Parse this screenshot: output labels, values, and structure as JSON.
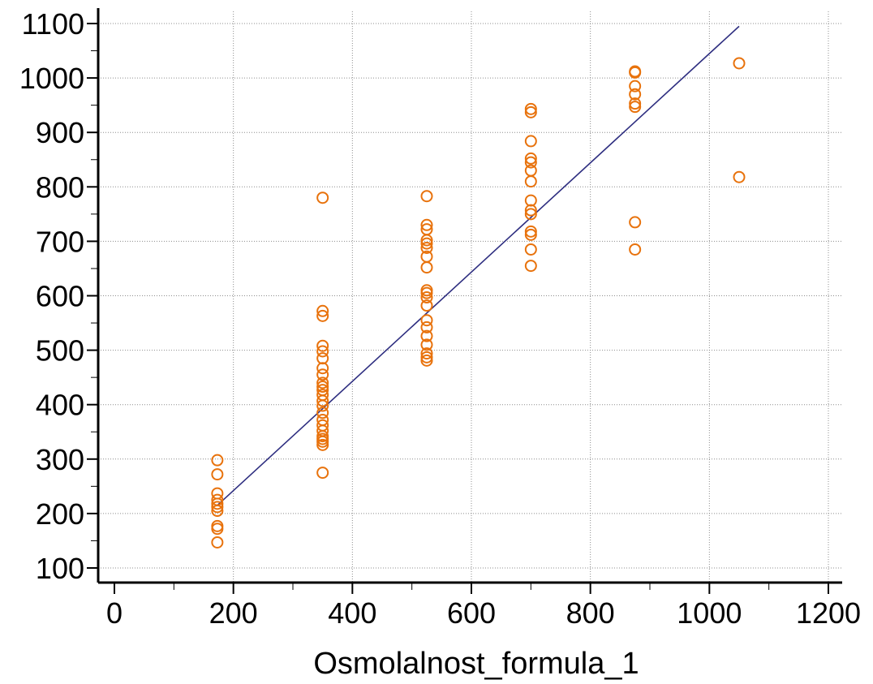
{
  "chart_data": {
    "type": "scatter",
    "title": "",
    "xlabel": "Osmolalnost_formula_1",
    "ylabel": "",
    "xlim": [
      0,
      1200
    ],
    "ylim": [
      100,
      1100
    ],
    "xticks": [
      0,
      200,
      400,
      600,
      800,
      1000,
      1200
    ],
    "yticks": [
      100,
      200,
      300,
      400,
      500,
      600,
      700,
      800,
      900,
      1000,
      1100
    ],
    "xtick_labels": [
      "0",
      "200",
      "400",
      "600",
      "800",
      "1000",
      "1200"
    ],
    "ytick_labels": [
      "100",
      "200",
      "300",
      "400",
      "500",
      "600",
      "700",
      "800",
      "900",
      "1000",
      "1100"
    ],
    "grid": true,
    "point_color": "#e8720c",
    "line_color": "#2e2e80",
    "points": [
      [
        173,
        298
      ],
      [
        173,
        272
      ],
      [
        173,
        237
      ],
      [
        173,
        225
      ],
      [
        173,
        218
      ],
      [
        173,
        212
      ],
      [
        173,
        205
      ],
      [
        173,
        177
      ],
      [
        173,
        172
      ],
      [
        173,
        147
      ],
      [
        350,
        780
      ],
      [
        350,
        572
      ],
      [
        350,
        563
      ],
      [
        350,
        508
      ],
      [
        350,
        498
      ],
      [
        350,
        485
      ],
      [
        350,
        467
      ],
      [
        350,
        455
      ],
      [
        350,
        440
      ],
      [
        350,
        433
      ],
      [
        350,
        427
      ],
      [
        350,
        418
      ],
      [
        350,
        407
      ],
      [
        350,
        398
      ],
      [
        350,
        385
      ],
      [
        350,
        372
      ],
      [
        350,
        362
      ],
      [
        350,
        352
      ],
      [
        350,
        342
      ],
      [
        350,
        337
      ],
      [
        350,
        332
      ],
      [
        350,
        326
      ],
      [
        350,
        275
      ],
      [
        525,
        783
      ],
      [
        525,
        730
      ],
      [
        525,
        722
      ],
      [
        525,
        702
      ],
      [
        525,
        696
      ],
      [
        525,
        688
      ],
      [
        525,
        672
      ],
      [
        525,
        652
      ],
      [
        525,
        610
      ],
      [
        525,
        605
      ],
      [
        525,
        597
      ],
      [
        525,
        582
      ],
      [
        525,
        555
      ],
      [
        525,
        542
      ],
      [
        525,
        526
      ],
      [
        525,
        510
      ],
      [
        525,
        494
      ],
      [
        525,
        487
      ],
      [
        525,
        481
      ],
      [
        700,
        943
      ],
      [
        700,
        937
      ],
      [
        700,
        884
      ],
      [
        700,
        852
      ],
      [
        700,
        845
      ],
      [
        700,
        830
      ],
      [
        700,
        810
      ],
      [
        700,
        775
      ],
      [
        700,
        757
      ],
      [
        700,
        750
      ],
      [
        700,
        718
      ],
      [
        700,
        712
      ],
      [
        700,
        685
      ],
      [
        700,
        655
      ],
      [
        875,
        1012
      ],
      [
        875,
        1010
      ],
      [
        875,
        985
      ],
      [
        875,
        970
      ],
      [
        875,
        953
      ],
      [
        875,
        947
      ],
      [
        875,
        735
      ],
      [
        875,
        685
      ],
      [
        1050,
        1027
      ],
      [
        1050,
        818
      ]
    ],
    "fit_line": [
      [
        173,
        215
      ],
      [
        1050,
        1095
      ]
    ]
  }
}
